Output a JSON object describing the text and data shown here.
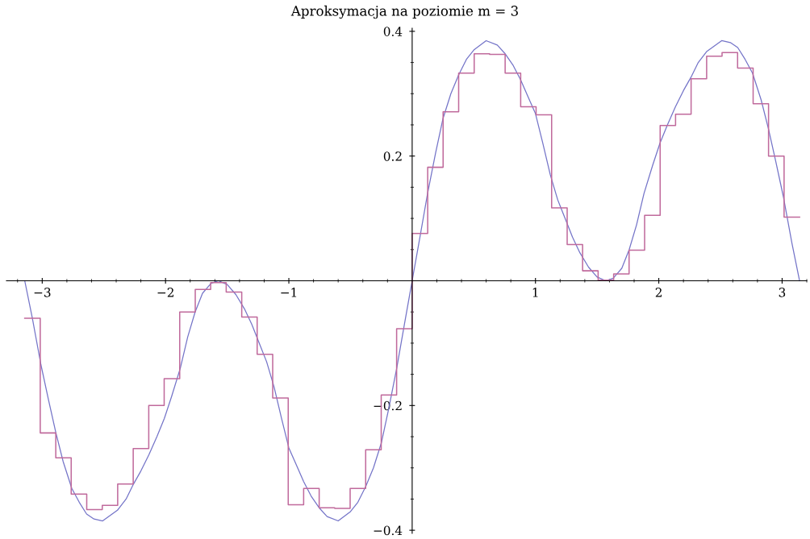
{
  "chart_data": {
    "type": "line",
    "title": "Aproksymacja na poziomie m = 3",
    "xlim": [
      -3.29,
      3.2
    ],
    "ylim": [
      -0.405,
      0.405
    ],
    "xticks": [
      {
        "value": -3,
        "label": "−3"
      },
      {
        "value": -2,
        "label": "−2"
      },
      {
        "value": -1,
        "label": "−1"
      },
      1,
      2,
      3
    ],
    "yticks": [
      {
        "value": -0.4,
        "label": "−0.4"
      },
      {
        "value": -0.2,
        "label": "−0.2"
      },
      0.2,
      0.4
    ],
    "grid": false,
    "marker": "none",
    "line_style": "solid",
    "series": [
      {
        "color": "#7474c8",
        "x": [
          -3.1416,
          -3.08,
          -3.01,
          -2.95,
          -2.89,
          -2.83,
          -2.76,
          -2.7,
          -2.64,
          -2.58,
          -2.51,
          -2.39,
          -2.32,
          -2.26,
          -2.2,
          -2.135,
          -2.07,
          -2.01,
          -1.95,
          -1.88,
          -1.82,
          -1.76,
          -1.7,
          -1.63,
          -1.571,
          -1.5,
          -1.43,
          -1.36,
          -1.3,
          -1.24,
          -1.18,
          -1.12,
          -1.06,
          -1.0,
          -0.94,
          -0.88,
          -0.82,
          -0.75,
          -0.69,
          -0.6,
          -0.5,
          -0.44,
          -0.377,
          -0.314,
          -0.25,
          -0.19,
          -0.125,
          -0.063,
          0,
          0.063,
          0.125,
          0.19,
          0.25,
          0.314,
          0.377,
          0.44,
          0.5,
          0.6,
          0.69,
          0.75,
          0.82,
          0.88,
          0.94,
          1.0,
          1.06,
          1.12,
          1.18,
          1.24,
          1.3,
          1.36,
          1.43,
          1.5,
          1.571,
          1.63,
          1.7,
          1.76,
          1.82,
          1.88,
          1.95,
          2.01,
          2.07,
          2.135,
          2.2,
          2.26,
          2.32,
          2.39,
          2.51,
          2.58,
          2.64,
          2.7,
          2.76,
          2.83,
          2.89,
          2.95,
          3.01,
          3.08,
          3.1416
        ],
        "values": [
          0,
          -0.06,
          -0.135,
          -0.19,
          -0.243,
          -0.29,
          -0.333,
          -0.355,
          -0.374,
          -0.382,
          -0.385,
          -0.368,
          -0.35,
          -0.326,
          -0.305,
          -0.279,
          -0.25,
          -0.221,
          -0.185,
          -0.14,
          -0.09,
          -0.05,
          -0.02,
          -0.004,
          0,
          -0.006,
          -0.022,
          -0.045,
          -0.07,
          -0.1,
          -0.13,
          -0.17,
          -0.22,
          -0.268,
          -0.295,
          -0.322,
          -0.345,
          -0.365,
          -0.378,
          -0.385,
          -0.37,
          -0.355,
          -0.33,
          -0.3,
          -0.26,
          -0.205,
          -0.14,
          -0.07,
          0,
          0.07,
          0.14,
          0.205,
          0.26,
          0.3,
          0.33,
          0.355,
          0.37,
          0.385,
          0.378,
          0.365,
          0.345,
          0.322,
          0.295,
          0.268,
          0.22,
          0.17,
          0.13,
          0.1,
          0.07,
          0.045,
          0.022,
          0.006,
          0,
          0.004,
          0.02,
          0.05,
          0.09,
          0.14,
          0.185,
          0.221,
          0.25,
          0.279,
          0.305,
          0.326,
          0.35,
          0.368,
          0.385,
          0.382,
          0.374,
          0.355,
          0.333,
          0.29,
          0.243,
          0.19,
          0.135,
          0.06,
          0
        ]
      },
      {
        "type": "step",
        "color": "#c06a9c",
        "x": [
          -3.142,
          -3.016,
          -2.89,
          -2.765,
          -2.639,
          -2.513,
          -2.388,
          -2.262,
          -2.136,
          -2.011,
          -1.885,
          -1.759,
          -1.634,
          -1.508,
          -1.382,
          -1.257,
          -1.131,
          -1.005,
          -0.88,
          -0.754,
          -0.628,
          -0.503,
          -0.377,
          -0.251,
          -0.126,
          0,
          0.126,
          0.251,
          0.377,
          0.503,
          0.628,
          0.754,
          0.88,
          1.005,
          1.131,
          1.257,
          1.382,
          1.508,
          1.634,
          1.759,
          1.885,
          2.011,
          2.136,
          2.262,
          2.388,
          2.513,
          2.639,
          2.765,
          2.89,
          3.016,
          3.142
        ],
        "values": [
          -0.06,
          -0.244,
          -0.284,
          -0.342,
          -0.367,
          -0.36,
          -0.326,
          -0.269,
          -0.2,
          -0.157,
          -0.05,
          -0.014,
          -0.003,
          -0.018,
          -0.058,
          -0.118,
          -0.188,
          -0.359,
          -0.333,
          -0.364,
          -0.365,
          -0.333,
          -0.271,
          -0.183,
          -0.077,
          0.076,
          0.182,
          0.271,
          0.333,
          0.364,
          0.363,
          0.333,
          0.279,
          0.266,
          0.117,
          0.058,
          0.016,
          0.001,
          0.011,
          0.049,
          0.105,
          0.249,
          0.267,
          0.324,
          0.36,
          0.366,
          0.341,
          0.284,
          0.2,
          0.102,
          0.102
        ]
      }
    ]
  }
}
